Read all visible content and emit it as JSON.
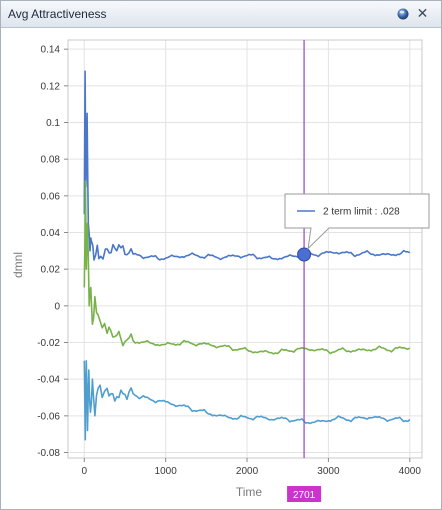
{
  "window": {
    "title": "Avg Attractiveness"
  },
  "colors": {
    "blue_series": "#4a78c8",
    "green_series": "#78b24a",
    "lightblue_series": "#4f9ed0",
    "cursor_line": "#a040c0",
    "cursor_badge": "#cc33cc"
  },
  "icons": {
    "options": "orb-icon",
    "close": "close-icon"
  },
  "cursor": {
    "x_value": 2701,
    "label": "2701"
  },
  "tooltip": {
    "text": "2 term limit : .028"
  },
  "chart_data": {
    "type": "line",
    "xlabel": "Time",
    "ylabel": "dmnl",
    "xlim": [
      -200,
      4150
    ],
    "ylim": [
      -0.083,
      0.145
    ],
    "x_ticks": [
      "0",
      "1000",
      "2000",
      "3000",
      "4000"
    ],
    "y_ticks": [
      "0.14",
      "0.12",
      "0.1",
      "0.08",
      "0.06",
      "0.04",
      "0.02",
      "0",
      "-0.02",
      "-0.04",
      "-0.06",
      "-0.08"
    ],
    "grid": true,
    "series": [
      {
        "name": "2 term limit",
        "color": "#4a78c8",
        "x": [
          0,
          10,
          20,
          35,
          50,
          70,
          90,
          120,
          160,
          200,
          260,
          330,
          400,
          500,
          700,
          900,
          1100,
          1300,
          1500,
          1700,
          1900,
          2100,
          2300,
          2500,
          2701,
          2900,
          3100,
          3300,
          3500,
          3700,
          3900,
          4000
        ],
        "y": [
          0.05,
          0.128,
          0.065,
          0.105,
          0.045,
          0.03,
          0.035,
          0.025,
          0.033,
          0.027,
          0.031,
          0.029,
          0.03,
          0.028,
          0.027,
          0.026,
          0.027,
          0.028,
          0.027,
          0.026,
          0.027,
          0.027,
          0.026,
          0.027,
          0.028,
          0.028,
          0.029,
          0.028,
          0.029,
          0.028,
          0.029,
          0.029
        ]
      },
      {
        "color": "#78b24a",
        "x": [
          0,
          15,
          25,
          40,
          60,
          80,
          100,
          130,
          170,
          220,
          280,
          350,
          450,
          600,
          800,
          1000,
          1200,
          1400,
          1600,
          1800,
          2000,
          2200,
          2400,
          2600,
          2800,
          3000,
          3200,
          3400,
          3600,
          3800,
          4000
        ],
        "y": [
          0.01,
          0.068,
          0.02,
          0.045,
          0.0,
          0.01,
          -0.01,
          0.005,
          -0.005,
          -0.012,
          -0.015,
          -0.017,
          -0.018,
          -0.019,
          -0.02,
          -0.021,
          -0.02,
          -0.021,
          -0.022,
          -0.023,
          -0.024,
          -0.025,
          -0.025,
          -0.024,
          -0.024,
          -0.025,
          -0.024,
          -0.024,
          -0.023,
          -0.024,
          -0.023
        ]
      },
      {
        "color": "#4f9ed0",
        "x": [
          0,
          12,
          25,
          40,
          55,
          75,
          100,
          130,
          170,
          220,
          280,
          350,
          450,
          550,
          700,
          900,
          1100,
          1300,
          1500,
          1700,
          1900,
          2100,
          2300,
          2500,
          2700,
          2900,
          3100,
          3300,
          3500,
          3700,
          3900,
          4000
        ],
        "y": [
          -0.03,
          -0.073,
          -0.03,
          -0.068,
          -0.035,
          -0.058,
          -0.04,
          -0.06,
          -0.045,
          -0.05,
          -0.045,
          -0.048,
          -0.046,
          -0.047,
          -0.05,
          -0.052,
          -0.054,
          -0.056,
          -0.058,
          -0.06,
          -0.061,
          -0.061,
          -0.062,
          -0.062,
          -0.063,
          -0.063,
          -0.061,
          -0.062,
          -0.061,
          -0.062,
          -0.062,
          -0.062
        ]
      }
    ]
  }
}
